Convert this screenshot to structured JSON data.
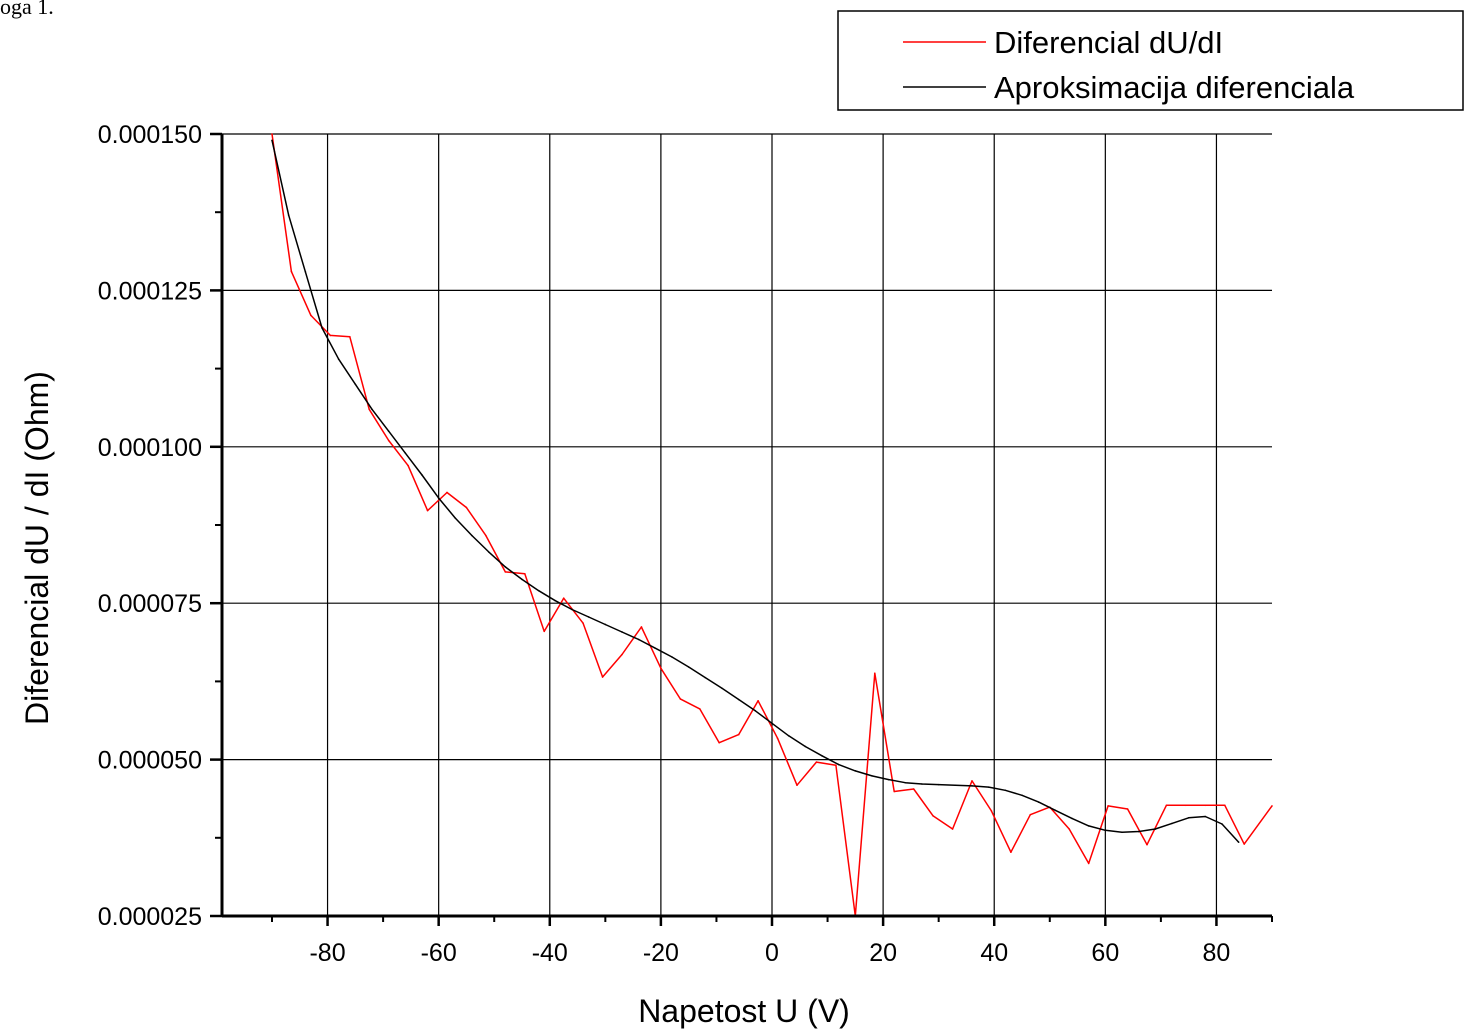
{
  "page": {
    "corner_text": "oga 1."
  },
  "chart_data": {
    "type": "line",
    "title": "",
    "xlabel": "Napetost U (V)",
    "ylabel": "Diferencial dU / dI (Ohm)",
    "xlim": [
      -99,
      90
    ],
    "ylim": [
      2.5e-05,
      0.00015
    ],
    "x_ticks": [
      -80,
      -60,
      -40,
      -20,
      0,
      20,
      40,
      60,
      80
    ],
    "x_tick_labels": [
      "-80",
      "-60",
      "-40",
      "-20",
      "0",
      "20",
      "40",
      "60",
      "80"
    ],
    "y_ticks": [
      2.5e-05,
      5e-05,
      7.5e-05,
      0.0001,
      0.000125,
      0.00015
    ],
    "y_tick_labels": [
      "0.000025",
      "0.000050",
      "0.000075",
      "0.000100",
      "0.000125",
      "0.000150"
    ],
    "grid": true,
    "legend_position": "top-right, outside plot",
    "series": [
      {
        "name": "Diferencial dU/dI",
        "color": "#ff0000",
        "x": [
          -90,
          -86.5,
          -83,
          -79.5,
          -76,
          -72.5,
          -69,
          -65.5,
          -62,
          -58.5,
          -55,
          -51.5,
          -48,
          -44.5,
          -41,
          -37.5,
          -34,
          -30.5,
          -27,
          -23.5,
          -20,
          -16.5,
          -13,
          -9.5,
          -6,
          -2.5,
          1,
          4.5,
          8,
          11.5,
          15,
          18.5,
          22,
          25.5,
          29,
          32.5,
          36,
          39.5,
          43,
          46.5,
          50,
          53.5,
          57,
          60.5,
          64,
          67.5,
          71,
          74.5,
          78,
          81.5,
          85,
          90
        ],
        "y": [
          0.00015,
          0.000128,
          0.000121,
          0.0001178,
          0.0001176,
          0.000106,
          0.000101,
          9.7e-05,
          8.98e-05,
          9.27e-05,
          9.03e-05,
          8.58e-05,
          8e-05,
          7.97e-05,
          7.05e-05,
          7.58e-05,
          7.18e-05,
          6.32e-05,
          6.68e-05,
          7.12e-05,
          6.46e-05,
          5.97e-05,
          5.81e-05,
          5.27e-05,
          5.4e-05,
          5.94e-05,
          5.34e-05,
          4.59e-05,
          4.96e-05,
          4.91e-05,
          2.5e-05,
          6.38e-05,
          4.49e-05,
          4.53e-05,
          4.1e-05,
          3.89e-05,
          4.66e-05,
          4.18e-05,
          3.52e-05,
          4.12e-05,
          4.24e-05,
          3.89e-05,
          3.34e-05,
          4.26e-05,
          4.21e-05,
          3.64e-05,
          4.27e-05,
          4.27e-05,
          4.27e-05,
          4.27e-05,
          3.65e-05,
          4.26e-05
        ]
      },
      {
        "name": "Aproksimacija diferenciala",
        "color": "#000000",
        "x": [
          -90,
          -87,
          -84,
          -81,
          -78,
          -75,
          -72,
          -69,
          -66,
          -63,
          -60,
          -57,
          -54,
          -51,
          -48,
          -45,
          -42,
          -39,
          -36,
          -33,
          -30,
          -27,
          -24,
          -21,
          -18,
          -15,
          -12,
          -9,
          -6,
          -3,
          0,
          3,
          6,
          9,
          12,
          15,
          18,
          21,
          24,
          27,
          30,
          33,
          36,
          39,
          42,
          45,
          48,
          51,
          54,
          57,
          60,
          63,
          66,
          69,
          72,
          75,
          78,
          81,
          84
        ],
        "y": [
          0.000149,
          0.000137,
          0.000128,
          0.000119,
          0.000114,
          0.00011,
          0.000106,
          0.0001025,
          9.9e-05,
          9.55e-05,
          9.18e-05,
          8.86e-05,
          8.58e-05,
          8.32e-05,
          8.08e-05,
          7.88e-05,
          7.7e-05,
          7.54e-05,
          7.4e-05,
          7.28e-05,
          7.16e-05,
          7.04e-05,
          6.92e-05,
          6.78e-05,
          6.64e-05,
          6.48e-05,
          6.31e-05,
          6.14e-05,
          5.96e-05,
          5.78e-05,
          5.58e-05,
          5.38e-05,
          5.21e-05,
          5.06e-05,
          4.92e-05,
          4.82e-05,
          4.74e-05,
          4.68e-05,
          4.63e-05,
          4.61e-05,
          4.6e-05,
          4.59e-05,
          4.58e-05,
          4.56e-05,
          4.51e-05,
          4.43e-05,
          4.32e-05,
          4.19e-05,
          4.06e-05,
          3.94e-05,
          3.87e-05,
          3.84e-05,
          3.85e-05,
          3.89e-05,
          3.98e-05,
          4.07e-05,
          4.09e-05,
          3.97e-05,
          3.68e-05
        ]
      }
    ]
  }
}
